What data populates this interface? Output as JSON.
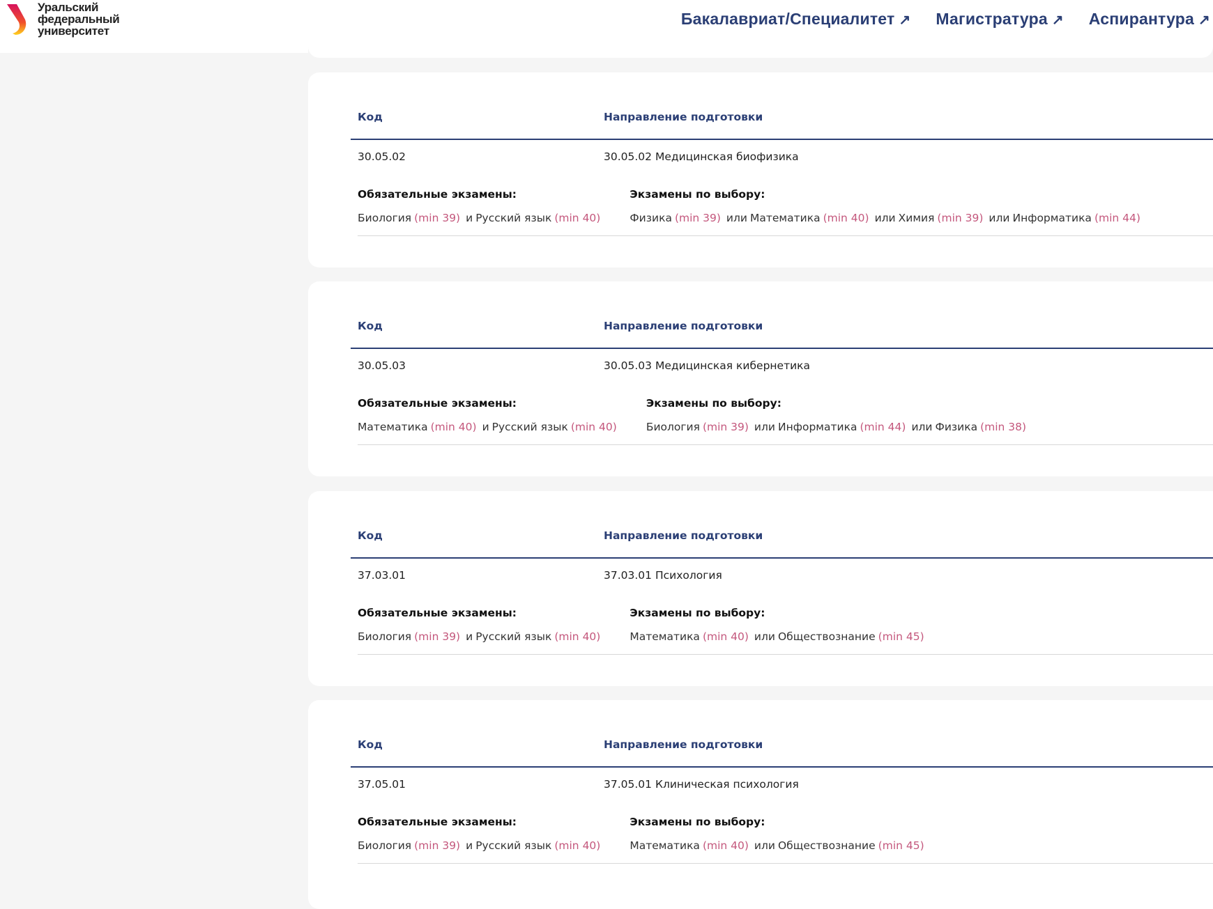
{
  "header": {
    "logo_lines": [
      "Уральский",
      "федеральный",
      "университет"
    ],
    "nav": [
      {
        "label": "Бакалавриат/Специалитет",
        "icon": "arrow-up-right-icon"
      },
      {
        "label": "Магистратура",
        "icon": "arrow-up-right-icon"
      },
      {
        "label": "Аспирантура",
        "icon": "arrow-up-right-icon"
      }
    ]
  },
  "colors": {
    "accent": "#2b3f75",
    "min_score": "#c4587d",
    "background": "#f5f5f5"
  },
  "table_headers": {
    "code": "Код",
    "direction": "Направление подготовки"
  },
  "labels": {
    "mandatory": "Обязательные экзамены:",
    "optional": "Экзамены по выбору:",
    "arrow": "↗"
  },
  "programs": [
    {
      "code": "30.05.02",
      "direction": "30.05.02 Медицинская биофизика",
      "mandatory": [
        {
          "conj": "",
          "name": "Биология",
          "min": "(min 39)"
        },
        {
          "conj": "и",
          "name": "Русский язык",
          "min": "(min 40)"
        }
      ],
      "optional": [
        {
          "conj": "",
          "name": "Физика",
          "min": "(min 39)"
        },
        {
          "conj": "или",
          "name": "Математика",
          "min": "(min 40)"
        },
        {
          "conj": "или",
          "name": "Химия",
          "min": "(min 39)"
        },
        {
          "conj": "или",
          "name": "Информатика",
          "min": "(min 44)"
        }
      ]
    },
    {
      "code": "30.05.03",
      "direction": "30.05.03 Медицинская кибернетика",
      "mandatory": [
        {
          "conj": "",
          "name": "Математика",
          "min": "(min 40)"
        },
        {
          "conj": "и",
          "name": "Русский язык",
          "min": "(min 40)"
        }
      ],
      "optional": [
        {
          "conj": "",
          "name": "Биология",
          "min": "(min 39)"
        },
        {
          "conj": "или",
          "name": "Информатика",
          "min": "(min 44)"
        },
        {
          "conj": "или",
          "name": "Физика",
          "min": "(min 38)"
        }
      ]
    },
    {
      "code": "37.03.01",
      "direction": "37.03.01 Психология",
      "mandatory": [
        {
          "conj": "",
          "name": "Биология",
          "min": "(min 39)"
        },
        {
          "conj": "и",
          "name": "Русский язык",
          "min": "(min 40)"
        }
      ],
      "optional": [
        {
          "conj": "",
          "name": "Математика",
          "min": "(min 40)"
        },
        {
          "conj": "или",
          "name": "Обществознание",
          "min": "(min 45)"
        }
      ]
    },
    {
      "code": "37.05.01",
      "direction": "37.05.01 Клиническая психология",
      "mandatory": [
        {
          "conj": "",
          "name": "Биология",
          "min": "(min 39)"
        },
        {
          "conj": "и",
          "name": "Русский язык",
          "min": "(min 40)"
        }
      ],
      "optional": [
        {
          "conj": "",
          "name": "Математика",
          "min": "(min 40)"
        },
        {
          "conj": "или",
          "name": "Обществознание",
          "min": "(min 45)"
        }
      ]
    }
  ]
}
